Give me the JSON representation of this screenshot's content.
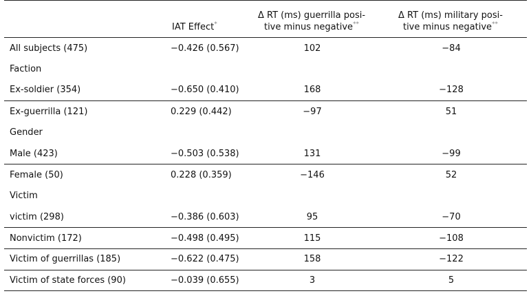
{
  "headers": {
    "c0": "",
    "c1": "IAT Effect",
    "c1_mark": "*",
    "c2_line1": "Δ RT (ms) guerrilla posi-",
    "c2_line2": "tive minus negative",
    "c2_mark": "**",
    "c3_line1": "Δ RT (ms) military posi-",
    "c3_line2": "tive minus negative",
    "c3_mark": "**"
  },
  "rows": [
    {
      "label": "All subjects (475)",
      "iat": "−0.426 (0.567)",
      "guerrilla": "102",
      "military": "−84"
    },
    {
      "label": "Faction",
      "iat": "",
      "guerrilla": "",
      "military": ""
    },
    {
      "label": "Ex-soldier (354)",
      "iat": "−0.650 (0.410)",
      "guerrilla": "168",
      "military": "−128"
    },
    {
      "label": "Ex-guerrilla (121)",
      "iat": "0.229 (0.442)",
      "guerrilla": "−97",
      "military": "51"
    },
    {
      "label": "Gender",
      "iat": "",
      "guerrilla": "",
      "military": ""
    },
    {
      "label": "Male (423)",
      "iat": "−0.503 (0.538)",
      "guerrilla": "131",
      "military": "−99"
    },
    {
      "label": "Female (50)",
      "iat": "0.228 (0.359)",
      "guerrilla": "−146",
      "military": "52"
    },
    {
      "label": "Victim",
      "iat": "",
      "guerrilla": "",
      "military": ""
    },
    {
      "label": "victim (298)",
      "iat": "−0.386 (0.603)",
      "guerrilla": "95",
      "military": "−70"
    },
    {
      "label": "Nonvictim (172)",
      "iat": "−0.498 (0.495)",
      "guerrilla": "115",
      "military": "−108"
    },
    {
      "label": "Victim of guerrillas (185)",
      "iat": "−0.622 (0.475)",
      "guerrilla": "158",
      "military": "−122"
    },
    {
      "label": "Victim of state forces (90)",
      "iat": "−0.039 (0.655)",
      "guerrilla": "3",
      "military": "5"
    }
  ]
}
